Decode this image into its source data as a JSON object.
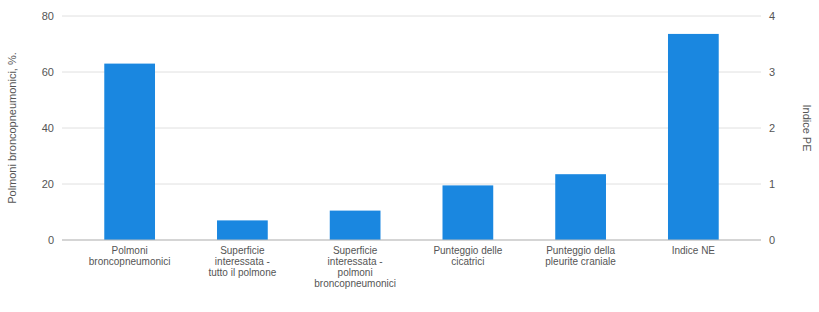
{
  "chart_data": {
    "type": "bar",
    "categories": [
      "Polmoni\nbroncopneumonici",
      "Superficie\ninteressata -\ntutto il polmone",
      "Superficie\ninteressata -\npolmoni\nbroncopneumonici",
      "Punteggio delle\ncicatrici",
      "Punteggio della\npleurite craniale",
      "Indice NE"
    ],
    "series": [
      {
        "color": "#1a87e0",
        "values": [
          63,
          7,
          10.5,
          19.5,
          23.5,
          null
        ]
      },
      {
        "color": "#1a87e0",
        "axis": "y2",
        "values": [
          null,
          null,
          null,
          null,
          null,
          3.68
        ]
      }
    ],
    "ylabel": "Polmoni broncopneumonici, %.",
    "y2label": "Indice PE",
    "ylim": [
      0,
      80
    ],
    "yticks": [
      0,
      20,
      40,
      60,
      80
    ],
    "y2lim": [
      0,
      4
    ],
    "y2ticks": [
      0,
      1,
      2,
      3,
      4
    ],
    "grid": true
  }
}
